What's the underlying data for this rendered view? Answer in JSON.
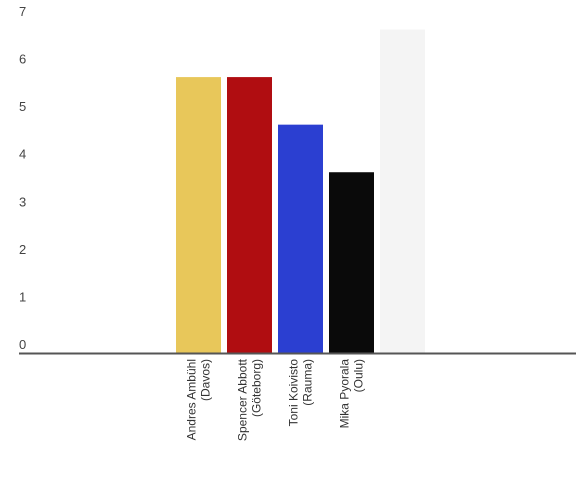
{
  "chart_data": {
    "type": "bar",
    "title": "",
    "xlabel": "",
    "ylabel": "",
    "ylim": [
      0,
      7
    ],
    "yticks": [
      "0",
      "1",
      "2",
      "3",
      "4",
      "5",
      "6",
      "7"
    ],
    "grid": false,
    "legend": "none",
    "categories": [
      {
        "line1": "Andres Ambühl",
        "line2": "(Davos)"
      },
      {
        "line1": "Spencer Abbott",
        "line2": "(Göteborg)"
      },
      {
        "line1": "Toni Koivisto",
        "line2": "(Rauma)"
      },
      {
        "line1": "Mika Pyorala",
        "line2": "(Oulu)"
      },
      {
        "line1": "",
        "line2": ""
      }
    ],
    "values": [
      5.8,
      5.8,
      4.8,
      3.8,
      6.8
    ],
    "colors": [
      "#e8c75a",
      "#b00d11",
      "#2b3fd1",
      "#0a0a0a",
      "#f4f4f4"
    ],
    "axis_color": "#555555"
  }
}
